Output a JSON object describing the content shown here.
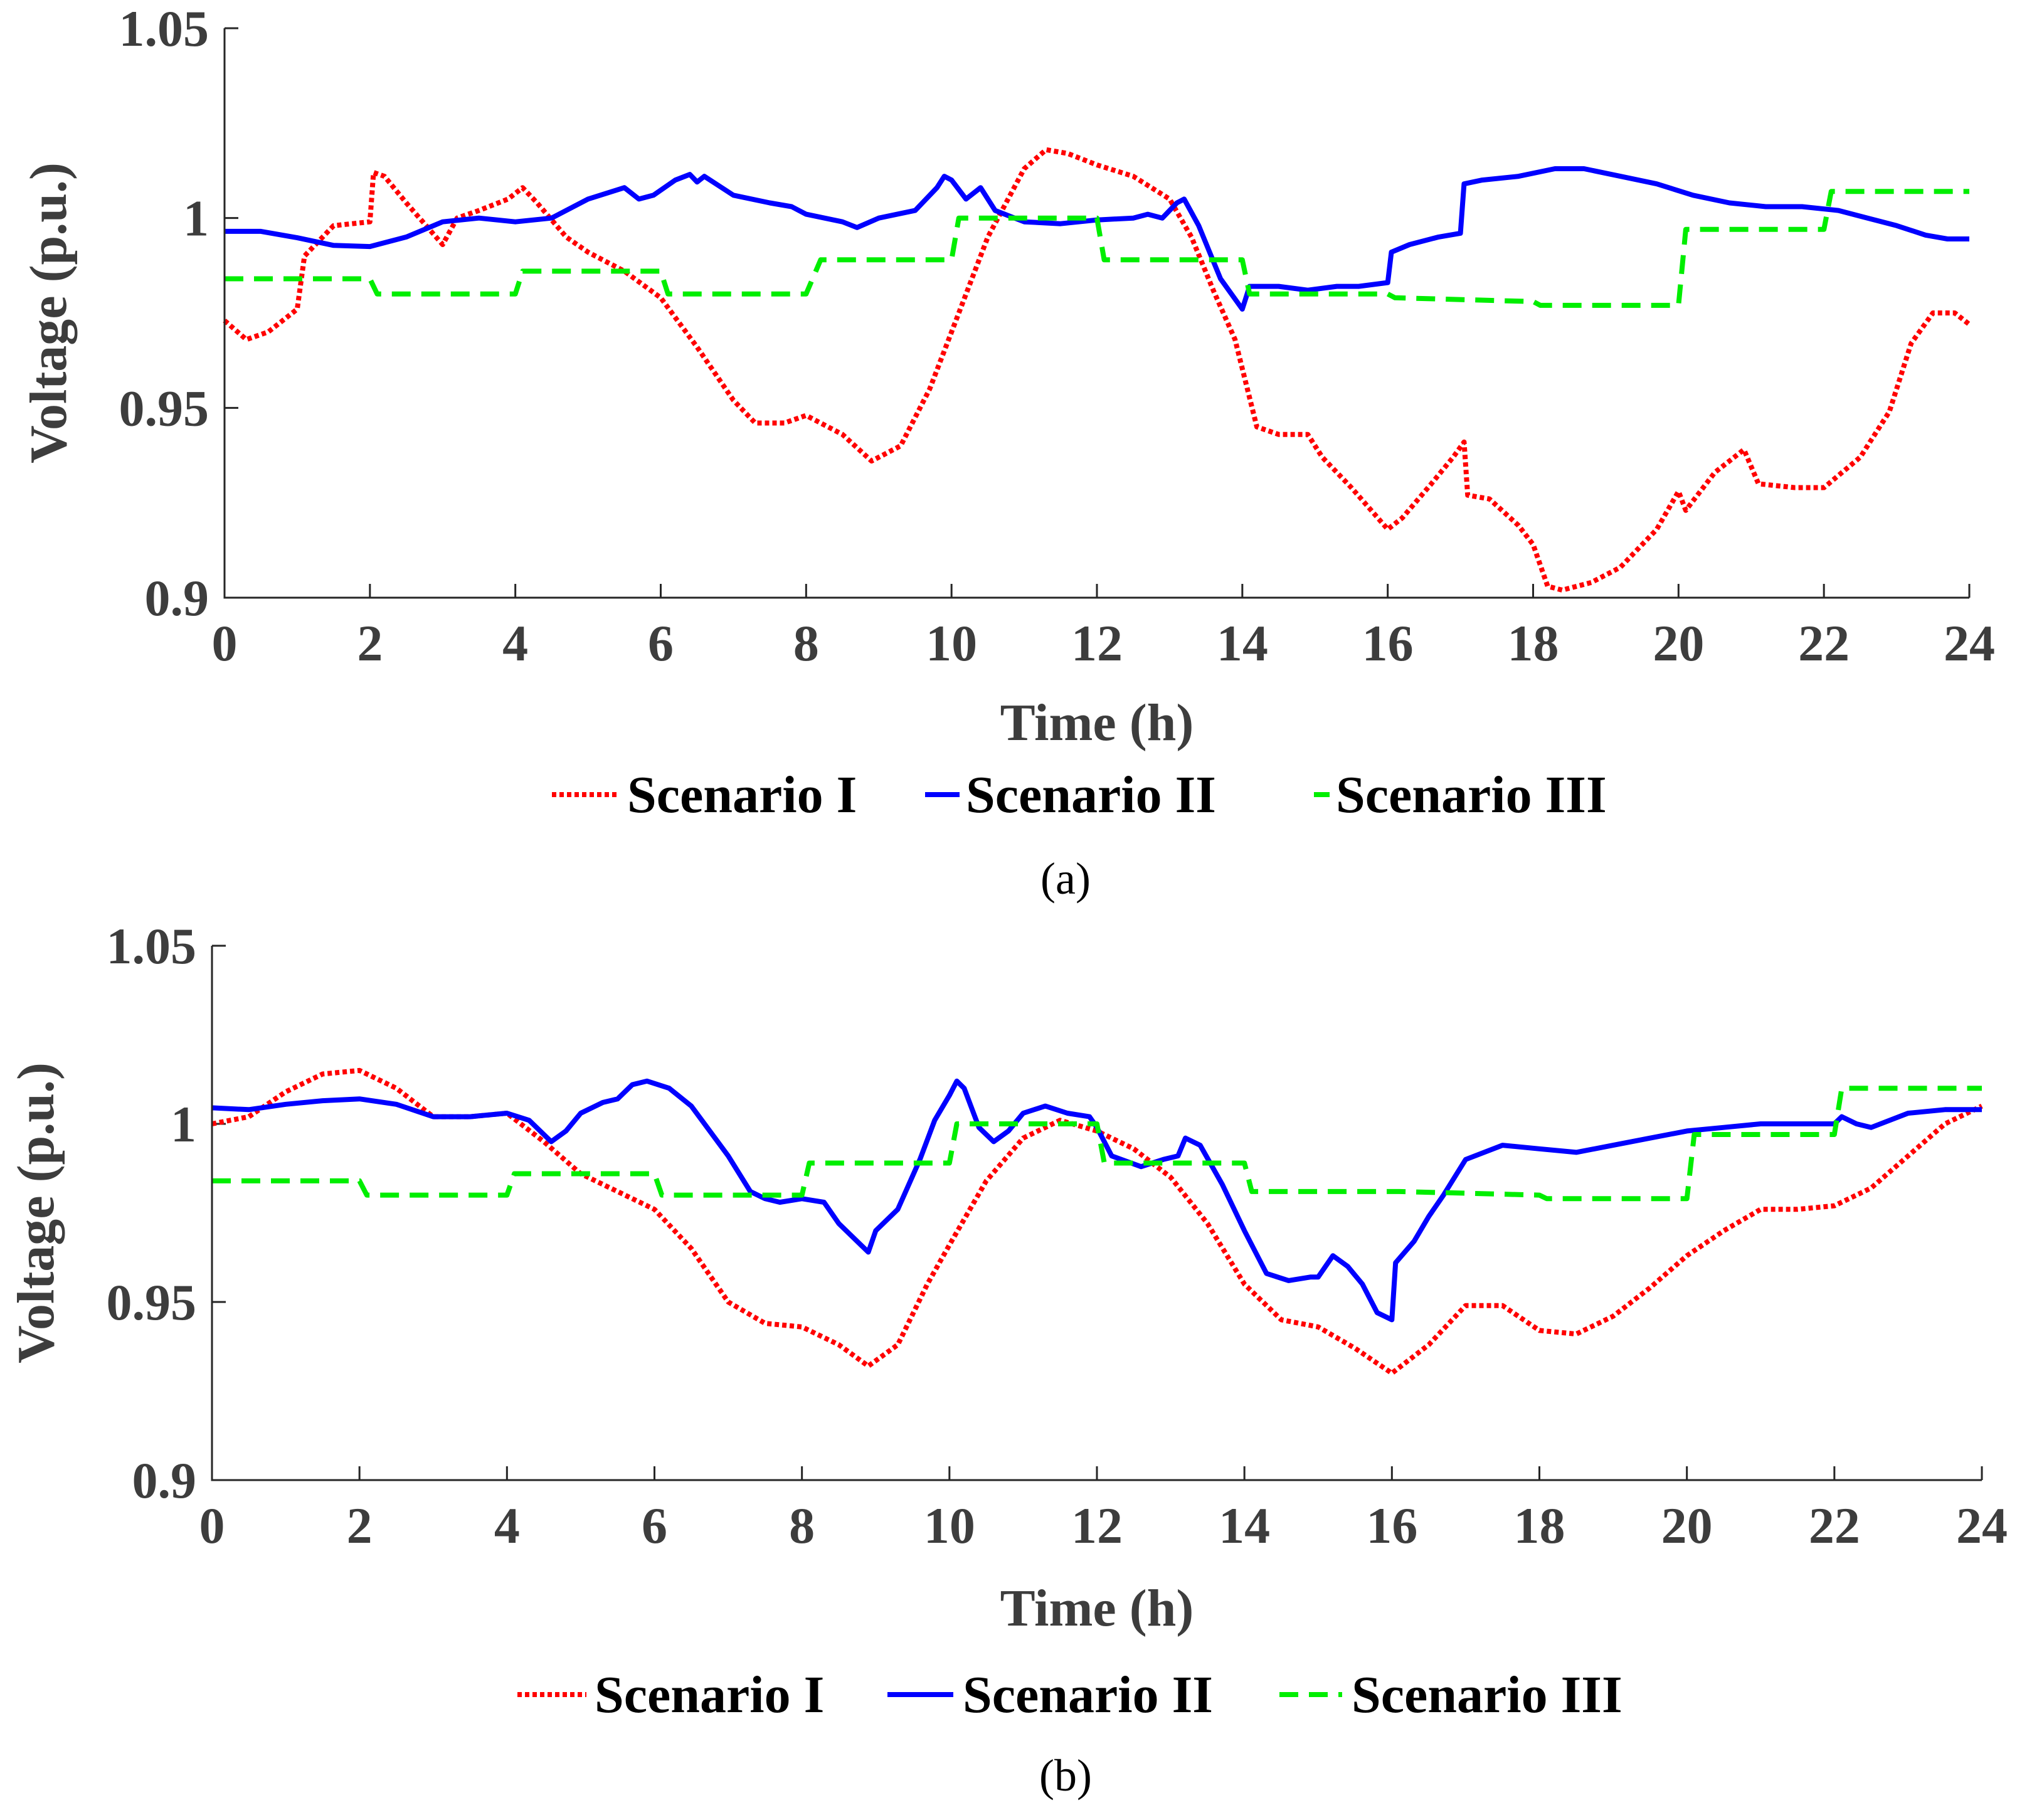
{
  "colors": {
    "scenario_i": "#ff0000",
    "scenario_ii": "#0000ff",
    "scenario_iii": "#00ee00",
    "axis": "#262626",
    "text": "#3d3d3d"
  },
  "chart_data": [
    {
      "type": "line",
      "panel_label": "(a)",
      "xlabel": "Time  (h)",
      "ylabel": "Voltage  (p.u.)",
      "xlim": [
        0,
        24
      ],
      "ylim": [
        0.9,
        1.05
      ],
      "xticks": [
        0,
        2,
        4,
        6,
        8,
        10,
        12,
        14,
        16,
        18,
        20,
        22,
        24
      ],
      "xtick_labels": [
        "0",
        "2",
        "4",
        "6",
        "8",
        "10",
        "12",
        "14",
        "16",
        "18",
        "20",
        "22",
        "24"
      ],
      "yticks": [
        0.9,
        0.95,
        1.0,
        1.05
      ],
      "ytick_labels": [
        "0.9",
        "0.95",
        "1",
        "1.05"
      ],
      "legend": [
        "Scenario I",
        "Scenario II",
        "Scenario III"
      ],
      "series": [
        {
          "name": "Scenario I",
          "style": "dotted",
          "x": [
            0,
            0.3,
            0.6,
            1.0,
            1.1,
            1.5,
            2.0,
            2.05,
            2.2,
            2.5,
            3.0,
            3.2,
            3.5,
            3.9,
            4.1,
            4.3,
            4.7,
            5.0,
            5.5,
            6.0,
            6.5,
            7.0,
            7.3,
            7.7,
            8.0,
            8.5,
            8.9,
            9.3,
            9.7,
            10.0,
            10.5,
            11.0,
            11.3,
            11.6,
            12.0,
            12.5,
            13.0,
            13.3,
            13.6,
            13.9,
            14.2,
            14.5,
            14.9,
            15.1,
            15.5,
            16.0,
            16.2,
            16.6,
            16.9,
            17.05,
            17.1,
            17.4,
            17.8,
            18.0,
            18.2,
            18.4,
            18.8,
            19.2,
            19.7,
            20.0,
            20.1,
            20.5,
            20.9,
            21.1,
            21.6,
            22.0,
            22.5,
            22.9,
            23.2,
            23.5,
            23.8,
            24.0
          ],
          "y": [
            0.973,
            0.968,
            0.97,
            0.976,
            0.99,
            0.998,
            0.999,
            1.012,
            1.011,
            1.004,
            0.993,
            1.0,
            1.002,
            1.005,
            1.008,
            1.004,
            0.995,
            0.991,
            0.986,
            0.979,
            0.966,
            0.952,
            0.946,
            0.946,
            0.948,
            0.943,
            0.936,
            0.94,
            0.955,
            0.97,
            0.995,
            1.013,
            1.018,
            1.017,
            1.014,
            1.011,
            1.005,
            0.995,
            0.981,
            0.968,
            0.945,
            0.943,
            0.943,
            0.937,
            0.929,
            0.918,
            0.921,
            0.93,
            0.937,
            0.941,
            0.927,
            0.926,
            0.919,
            0.914,
            0.903,
            0.902,
            0.904,
            0.908,
            0.918,
            0.928,
            0.923,
            0.933,
            0.939,
            0.93,
            0.929,
            0.929,
            0.937,
            0.949,
            0.967,
            0.975,
            0.975,
            0.972
          ]
        },
        {
          "name": "Scenario II",
          "style": "solid",
          "x": [
            0,
            0.5,
            1.0,
            1.5,
            2.0,
            2.5,
            3.0,
            3.5,
            4.0,
            4.5,
            5.0,
            5.5,
            5.7,
            5.9,
            6.2,
            6.4,
            6.5,
            6.6,
            7.0,
            7.5,
            7.8,
            8.0,
            8.5,
            8.7,
            9.0,
            9.5,
            9.8,
            9.9,
            10.0,
            10.2,
            10.4,
            10.6,
            11.0,
            11.5,
            12.0,
            12.5,
            12.7,
            12.9,
            13.1,
            13.2,
            13.4,
            13.7,
            14.0,
            14.1,
            14.5,
            14.9,
            15.3,
            15.6,
            16.0,
            16.05,
            16.3,
            16.7,
            17.0,
            17.05,
            17.3,
            17.8,
            18.3,
            18.7,
            19.2,
            19.7,
            20.2,
            20.7,
            21.2,
            21.7,
            22.2,
            22.6,
            23.0,
            23.4,
            23.7,
            24.0
          ],
          "y": [
            0.9965,
            0.9965,
            0.9948,
            0.9928,
            0.9925,
            0.995,
            0.999,
            1.0,
            0.999,
            1.0,
            1.005,
            1.008,
            1.005,
            1.006,
            1.01,
            1.0115,
            1.0095,
            1.011,
            1.006,
            1.004,
            1.003,
            1.001,
            0.999,
            0.9975,
            1.0,
            1.002,
            1.008,
            1.011,
            1.01,
            1.005,
            1.008,
            1.002,
            0.999,
            0.9985,
            0.9995,
            1.0,
            1.001,
            1.0,
            1.004,
            1.005,
            0.998,
            0.984,
            0.976,
            0.982,
            0.982,
            0.981,
            0.982,
            0.982,
            0.983,
            0.991,
            0.993,
            0.995,
            0.996,
            1.009,
            1.01,
            1.011,
            1.013,
            1.013,
            1.011,
            1.009,
            1.006,
            1.004,
            1.003,
            1.003,
            1.002,
            1.0,
            0.998,
            0.9955,
            0.9945,
            0.9945
          ]
        },
        {
          "name": "Scenario III",
          "style": "dashed",
          "x": [
            0,
            2.0,
            2.1,
            4.0,
            4.1,
            6.0,
            6.1,
            8.0,
            8.2,
            10.0,
            10.1,
            12.0,
            12.1,
            14.0,
            14.1,
            16.0,
            16.1,
            18.0,
            18.1,
            20.0,
            20.1,
            22.0,
            22.1,
            24.0
          ],
          "y": [
            0.984,
            0.984,
            0.98,
            0.98,
            0.986,
            0.986,
            0.98,
            0.98,
            0.989,
            0.989,
            1.0,
            1.0,
            0.989,
            0.989,
            0.98,
            0.98,
            0.979,
            0.978,
            0.977,
            0.977,
            0.997,
            0.997,
            1.007,
            1.007
          ]
        }
      ]
    },
    {
      "type": "line",
      "panel_label": "(b)",
      "xlabel": "Time  (h)",
      "ylabel": "Voltage  (p.u.)",
      "xlim": [
        0,
        24
      ],
      "ylim": [
        0.9,
        1.05
      ],
      "xticks": [
        0,
        2,
        4,
        6,
        8,
        10,
        12,
        14,
        16,
        18,
        20,
        22,
        24
      ],
      "xtick_labels": [
        "0",
        "2",
        "4",
        "6",
        "8",
        "10",
        "12",
        "14",
        "16",
        "18",
        "20",
        "22",
        "24"
      ],
      "yticks": [
        0.9,
        0.95,
        1.0,
        1.05
      ],
      "ytick_labels": [
        "0.9",
        "0.95",
        "1",
        "1.05"
      ],
      "legend": [
        "Scenario I",
        "Scenario II",
        "Scenario III"
      ],
      "series": [
        {
          "name": "Scenario I",
          "style": "dotted",
          "x": [
            0,
            0.5,
            1.0,
            1.5,
            2.0,
            2.5,
            3.0,
            3.5,
            4.0,
            4.5,
            5.0,
            5.5,
            6.0,
            6.5,
            7.0,
            7.5,
            8.0,
            8.5,
            8.9,
            9.3,
            9.7,
            10.0,
            10.5,
            11.0,
            11.5,
            12.0,
            12.5,
            13.0,
            13.5,
            14.0,
            14.5,
            15.0,
            15.5,
            16.0,
            16.5,
            17.0,
            17.5,
            18.0,
            18.5,
            19.0,
            19.5,
            20.0,
            20.5,
            21.0,
            21.5,
            22.0,
            22.5,
            23.0,
            23.5,
            24.0
          ],
          "y": [
            1.0,
            1.002,
            1.009,
            1.014,
            1.015,
            1.01,
            1.002,
            1.002,
            1.003,
            0.995,
            0.986,
            0.981,
            0.976,
            0.965,
            0.95,
            0.944,
            0.943,
            0.938,
            0.932,
            0.938,
            0.955,
            0.966,
            0.984,
            0.996,
            1.001,
            0.998,
            0.993,
            0.985,
            0.972,
            0.955,
            0.945,
            0.943,
            0.937,
            0.93,
            0.938,
            0.949,
            0.949,
            0.942,
            0.941,
            0.946,
            0.954,
            0.963,
            0.97,
            0.976,
            0.976,
            0.977,
            0.982,
            0.991,
            1.0,
            1.005
          ]
        },
        {
          "name": "Scenario II",
          "style": "solid",
          "x": [
            0,
            0.5,
            1.0,
            1.5,
            2.0,
            2.5,
            3.0,
            3.5,
            4.0,
            4.3,
            4.6,
            4.8,
            5.0,
            5.3,
            5.5,
            5.7,
            5.9,
            6.2,
            6.5,
            7.0,
            7.3,
            7.5,
            7.7,
            8.0,
            8.3,
            8.5,
            8.8,
            8.9,
            9.0,
            9.3,
            9.6,
            9.8,
            10.0,
            10.1,
            10.2,
            10.4,
            10.6,
            10.8,
            11.0,
            11.3,
            11.6,
            11.9,
            12.0,
            12.2,
            12.6,
            12.9,
            13.1,
            13.2,
            13.4,
            13.7,
            14.0,
            14.3,
            14.6,
            14.9,
            15.0,
            15.2,
            15.4,
            15.6,
            15.8,
            16.0,
            16.05,
            16.3,
            16.5,
            16.7,
            17.0,
            17.5,
            18.0,
            18.5,
            19.0,
            19.5,
            20.0,
            20.5,
            21.0,
            21.5,
            22.0,
            22.1,
            22.3,
            22.5,
            23.0,
            23.5,
            24.0
          ],
          "y": [
            1.0045,
            1.004,
            1.0055,
            1.0065,
            1.007,
            1.0055,
            1.002,
            1.002,
            1.003,
            1.001,
            0.995,
            0.998,
            1.003,
            1.006,
            1.007,
            1.011,
            1.012,
            1.01,
            1.005,
            0.991,
            0.981,
            0.979,
            0.978,
            0.979,
            0.978,
            0.972,
            0.966,
            0.964,
            0.97,
            0.976,
            0.99,
            1.001,
            1.008,
            1.012,
            1.01,
            0.999,
            0.995,
            0.998,
            1.003,
            1.005,
            1.003,
            1.002,
            0.999,
            0.991,
            0.988,
            0.99,
            0.991,
            0.996,
            0.994,
            0.983,
            0.97,
            0.958,
            0.956,
            0.957,
            0.957,
            0.963,
            0.96,
            0.955,
            0.947,
            0.945,
            0.961,
            0.967,
            0.974,
            0.98,
            0.99,
            0.994,
            0.993,
            0.992,
            0.994,
            0.996,
            0.998,
            0.999,
            1.0,
            1.0,
            1.0,
            1.002,
            1.0,
            0.999,
            1.003,
            1.004,
            1.004
          ]
        },
        {
          "name": "Scenario III",
          "style": "dashed",
          "x": [
            0,
            2.0,
            2.1,
            4.0,
            4.1,
            6.0,
            6.1,
            8.0,
            8.1,
            10.0,
            10.1,
            12.0,
            12.1,
            14.0,
            14.1,
            16.0,
            16.1,
            18.0,
            18.1,
            20.0,
            20.1,
            22.0,
            22.1,
            24.0
          ],
          "y": [
            0.984,
            0.984,
            0.98,
            0.98,
            0.986,
            0.986,
            0.98,
            0.98,
            0.989,
            0.989,
            1.0,
            1.0,
            0.989,
            0.989,
            0.981,
            0.981,
            0.981,
            0.98,
            0.979,
            0.979,
            0.997,
            0.997,
            1.01,
            1.01
          ]
        }
      ]
    }
  ]
}
